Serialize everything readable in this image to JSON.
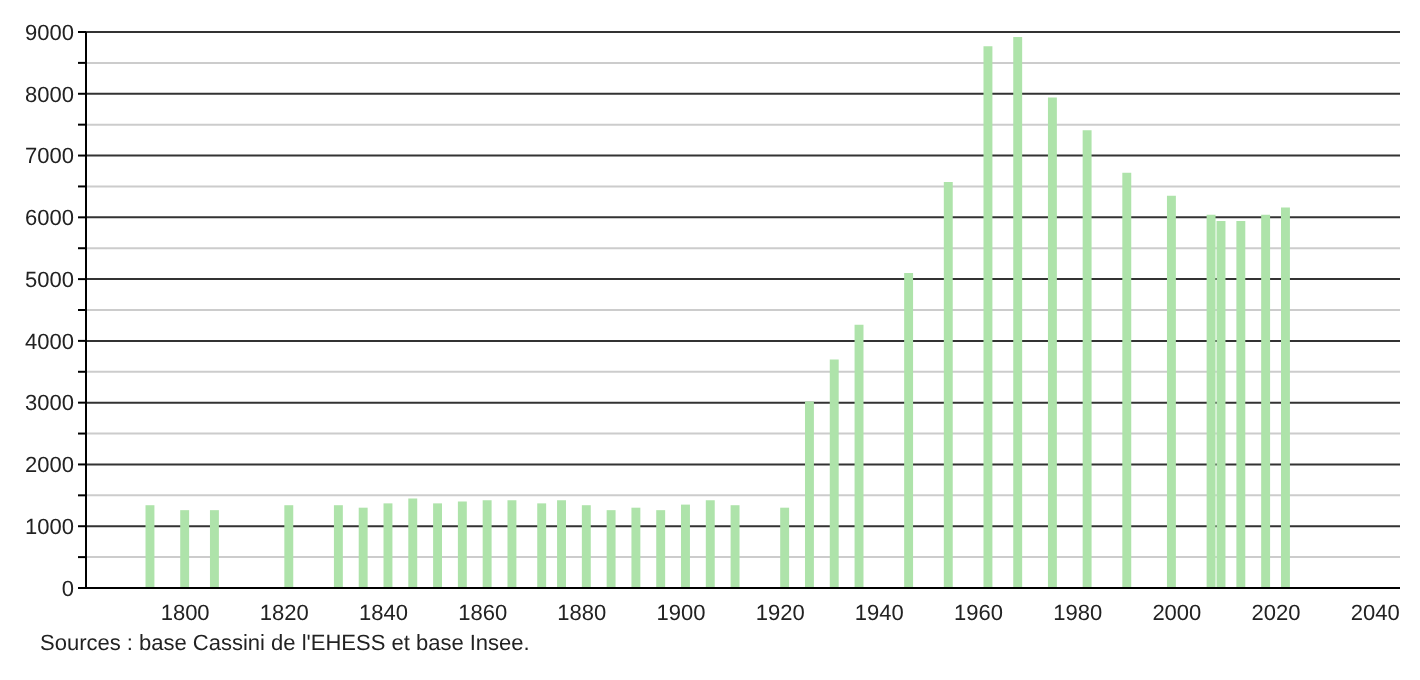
{
  "chart_data": {
    "type": "bar",
    "x": [
      1793,
      1800,
      1806,
      1821,
      1831,
      1836,
      1841,
      1846,
      1851,
      1856,
      1861,
      1866,
      1872,
      1876,
      1881,
      1886,
      1891,
      1896,
      1901,
      1906,
      1911,
      1921,
      1926,
      1931,
      1936,
      1946,
      1954,
      1962,
      1968,
      1975,
      1982,
      1990,
      1999,
      2007,
      2009,
      2013,
      2018,
      2022
    ],
    "values": [
      1340,
      1260,
      1260,
      1340,
      1340,
      1300,
      1370,
      1450,
      1370,
      1400,
      1420,
      1420,
      1370,
      1420,
      1340,
      1260,
      1300,
      1260,
      1350,
      1420,
      1340,
      1300,
      3020,
      3700,
      4260,
      5100,
      6570,
      8770,
      8920,
      7940,
      7410,
      6720,
      6350,
      6040,
      5940,
      5940,
      6040,
      6160
    ],
    "color": "#aee3aa",
    "xlim": [
      1780,
      2045
    ],
    "xticks": [
      1800,
      1820,
      1840,
      1860,
      1880,
      1900,
      1920,
      1940,
      1960,
      1980,
      2000,
      2020,
      2040
    ],
    "ylim": [
      0,
      9000
    ],
    "yticks": [
      0,
      {
        "value": 500,
        "label": null
      },
      1000,
      {
        "value": 1500,
        "label": null
      },
      2000,
      {
        "value": 2500,
        "label": null
      },
      3000,
      {
        "value": 3500,
        "label": null
      },
      4000,
      {
        "value": 4500,
        "label": null
      },
      5000,
      {
        "value": 5500,
        "label": null
      },
      6000,
      {
        "value": 6500,
        "label": null
      },
      7000,
      {
        "value": 7500,
        "label": null
      },
      8000,
      {
        "value": 8500,
        "label": null
      },
      9000
    ],
    "grid": "y",
    "annotations": [
      "Sources : base Cassini de l'EHESS et base Insee."
    ]
  }
}
